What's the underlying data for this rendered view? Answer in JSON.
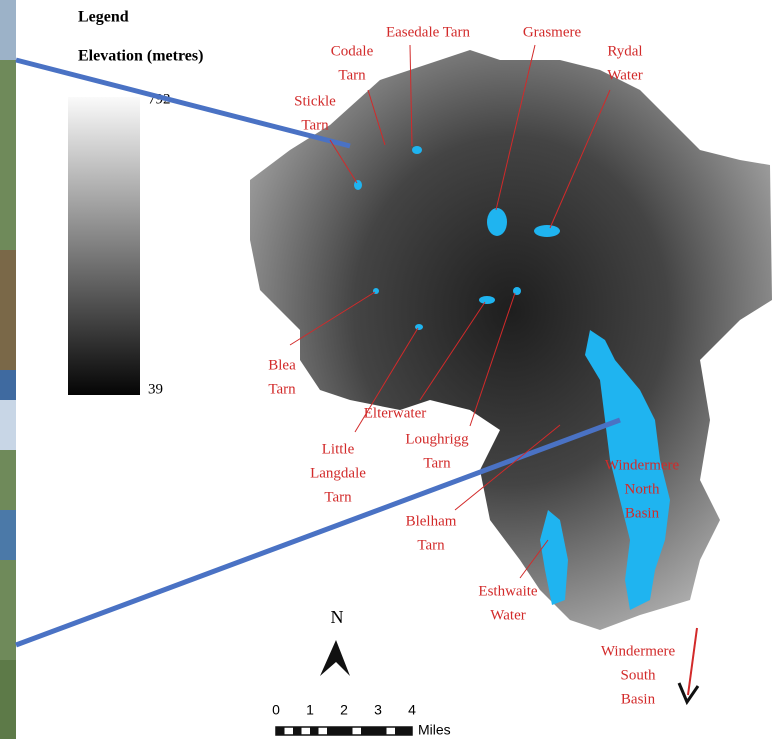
{
  "legend": {
    "title": "Legend",
    "subtitle": "Elevation (metres)",
    "max": 792,
    "min": 39
  },
  "labels": [
    {
      "lines": [
        "Easedale Tarn"
      ]
    },
    {
      "lines": [
        "Codale",
        "Tarn"
      ]
    },
    {
      "lines": [
        "Stickle",
        "Tarn"
      ]
    },
    {
      "lines": [
        "Grasmere"
      ]
    },
    {
      "lines": [
        "Rydal",
        "Water"
      ]
    },
    {
      "lines": [
        "Blea",
        "Tarn"
      ]
    },
    {
      "lines": [
        "Elterwater"
      ]
    },
    {
      "lines": [
        "Little",
        "Langdale",
        "Tarn"
      ]
    },
    {
      "lines": [
        "Loughrigg",
        "Tarn"
      ]
    },
    {
      "lines": [
        "Windermere",
        "North",
        "Basin"
      ]
    },
    {
      "lines": [
        "Blelham",
        "Tarn"
      ]
    },
    {
      "lines": [
        "Esthwaite",
        "Water"
      ]
    },
    {
      "lines": [
        "Windermere",
        "South",
        "Basin"
      ]
    }
  ],
  "north": "N",
  "scale": {
    "ticks": [
      0,
      1,
      2,
      3,
      4
    ],
    "unit": "Miles"
  }
}
